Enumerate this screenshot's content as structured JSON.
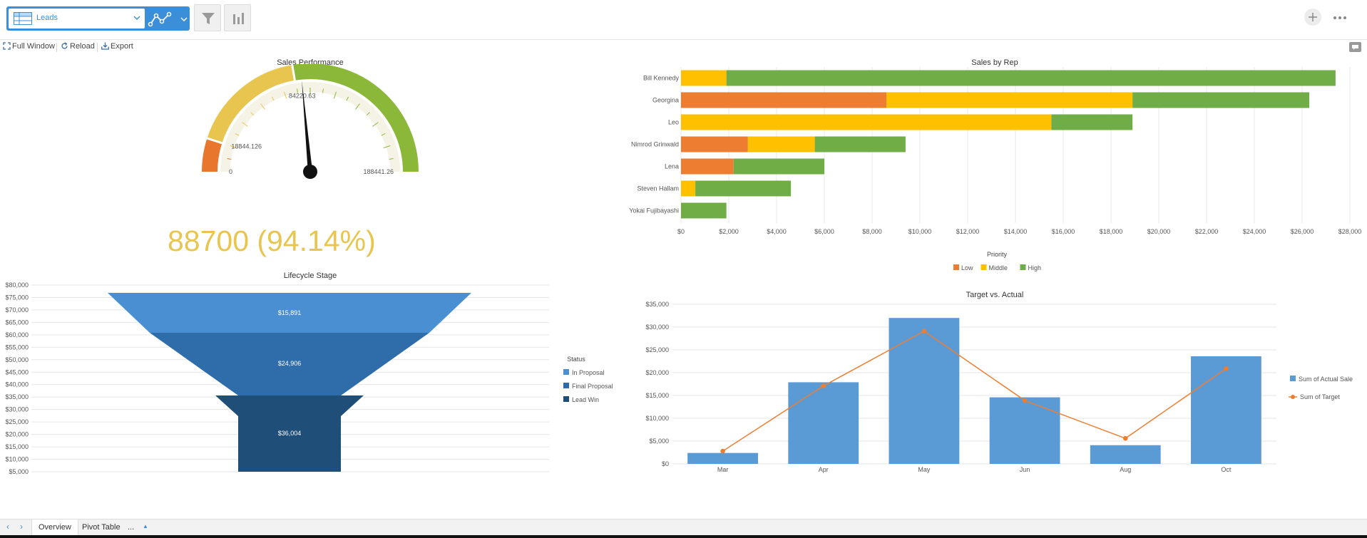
{
  "toolbar": {
    "datasource_label": "Leads",
    "buttons": [
      "filter-icon",
      "bar-chart-icon",
      "plus-icon",
      "more-icon"
    ]
  },
  "subtoolbar": {
    "full_window": "Full Window",
    "reload": "Reload",
    "export": "Export"
  },
  "gauge": {
    "title": "Sales Performance",
    "min_label": "0",
    "band1_label": "18844.126",
    "band2_label": "84220.63",
    "max_label": "188441.26",
    "value": 88700,
    "max": 188441.26,
    "band1": 18844.126,
    "band2": 84220.63,
    "value_text": "88700 (94.14%)",
    "colors": {
      "low": "#e8762d",
      "mid": "#e8c54e",
      "high": "#8cb83a",
      "value_text": "#e8c54e"
    }
  },
  "chart_data": [
    {
      "type": "bar",
      "orientation": "horizontal",
      "stacked": true,
      "title": "Sales by Rep",
      "categories": [
        "Bill Kennedy",
        "Georgina",
        "Leo",
        "Nimrod Grinwald",
        "Lena",
        "Steven Hallam",
        "Yokai Fujibayashi"
      ],
      "series": [
        {
          "name": "Low",
          "color": "#ed7d31",
          "values": [
            0,
            8600,
            0,
            2800,
            2200,
            0,
            0
          ]
        },
        {
          "name": "Middle",
          "color": "#ffc000",
          "values": [
            1900,
            10300,
            15500,
            2800,
            0,
            600,
            0
          ]
        },
        {
          "name": "High",
          "color": "#70ad47",
          "values": [
            25500,
            7400,
            3400,
            3800,
            3800,
            4000,
            1900
          ]
        }
      ],
      "xlim": [
        0,
        28000
      ],
      "xticks": [
        "$0",
        "$2,000",
        "$4,000",
        "$6,000",
        "$8,000",
        "$10,000",
        "$12,000",
        "$14,000",
        "$16,000",
        "$18,000",
        "$20,000",
        "$22,000",
        "$24,000",
        "$26,000",
        "$28,000"
      ],
      "legend_title": "Priority",
      "legend_position": "bottom"
    },
    {
      "type": "funnel",
      "title": "Lifecycle Stage",
      "stages": [
        {
          "name": "In Proposal",
          "label": "$15,891",
          "color": "#4a8fd1"
        },
        {
          "name": "Final Proposal",
          "label": "$24,906",
          "color": "#2e6da9"
        },
        {
          "name": "Lead Win",
          "label": "$36,004",
          "color": "#1f4e79"
        }
      ],
      "yticks": [
        "$80,000",
        "$75,000",
        "$70,000",
        "$65,000",
        "$60,000",
        "$55,000",
        "$50,000",
        "$45,000",
        "$40,000",
        "$35,000",
        "$30,000",
        "$25,000",
        "$20,000",
        "$15,000",
        "$10,000",
        "$5,000"
      ],
      "legend_title": "Status",
      "legend_position": "right"
    },
    {
      "type": "bar",
      "title": "Target vs. Actual",
      "categories": [
        "Mar",
        "Apr",
        "May",
        "Jun",
        "Aug",
        "Oct"
      ],
      "series": [
        {
          "name": "Sum of Actual Sale",
          "type": "bar",
          "color": "#5b9bd5",
          "values": [
            2400,
            17900,
            32000,
            14600,
            4100,
            23600
          ]
        },
        {
          "name": "Sum of Target",
          "type": "line",
          "color": "#ed7d31",
          "values": [
            2800,
            17100,
            29100,
            13900,
            5600,
            20900
          ]
        }
      ],
      "ylim": [
        0,
        35000
      ],
      "yticks": [
        "$0",
        "$5,000",
        "$10,000",
        "$15,000",
        "$20,000",
        "$25,000",
        "$30,000",
        "$35,000"
      ],
      "legend_position": "right"
    }
  ],
  "bottom_tabs": {
    "prev": "‹",
    "next": "›",
    "tabs": [
      "Overview",
      "Pivot Table",
      "..."
    ],
    "active": "Overview",
    "up": "▲"
  }
}
